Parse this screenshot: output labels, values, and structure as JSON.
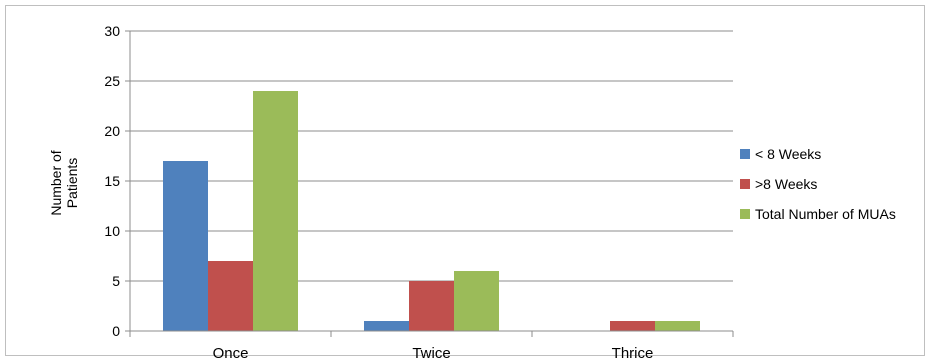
{
  "chart_data": {
    "type": "bar",
    "title": "",
    "xlabel": "",
    "ylabel_lines": [
      "Number of",
      "Patients"
    ],
    "categories": [
      "Once",
      "Twice",
      "Thrice"
    ],
    "series": [
      {
        "name": "< 8 Weeks",
        "color": "#4f81bd",
        "values": [
          17,
          1,
          0
        ]
      },
      {
        "name": ">8 Weeks",
        "color": "#c0504d",
        "values": [
          7,
          5,
          1
        ]
      },
      {
        "name": "Total Number of MUAs",
        "color": "#9bbb59",
        "values": [
          24,
          6,
          1
        ]
      }
    ],
    "ylim": [
      0,
      30
    ],
    "yticks": [
      0,
      5,
      10,
      15,
      20,
      25,
      30
    ],
    "grid": true,
    "legend_position": "right"
  }
}
